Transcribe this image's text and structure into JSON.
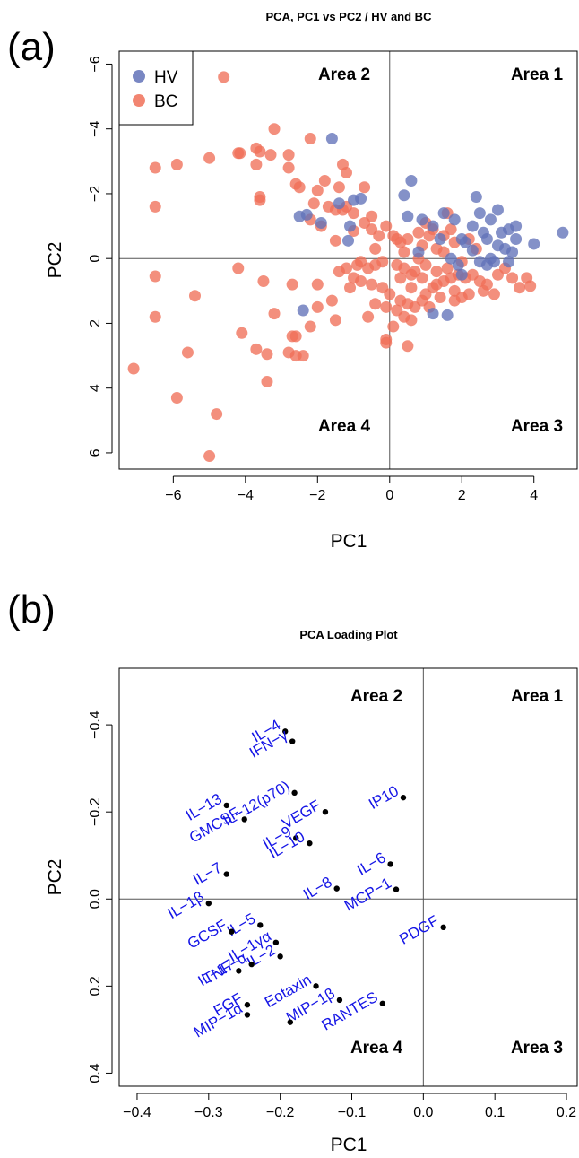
{
  "panel_a": {
    "tag": "(a)"
  },
  "panel_b": {
    "tag": "(b)"
  },
  "chart_data": [
    {
      "type": "scatter",
      "title": "PCA, PC1 vs PC2 / HV and BC",
      "xlabel": "PC1",
      "ylabel": "PC2",
      "xlim": [
        -7.5,
        5.2
      ],
      "ylim": [
        -6.4,
        6.5
      ],
      "y_reversed": true,
      "xticks": [
        -6,
        -4,
        -2,
        0,
        2,
        4
      ],
      "xtick_labels": [
        "−6",
        "−4",
        "−2",
        "0",
        "2",
        "4"
      ],
      "yticks": [
        -6,
        -4,
        -2,
        0,
        2,
        4,
        6
      ],
      "ytick_labels": [
        "−6",
        "−4",
        "−2",
        "0",
        "2",
        "4",
        "6"
      ],
      "reference_lines": {
        "x": 0,
        "y": 0
      },
      "grid": false,
      "legend_position": "top-left",
      "quadrant_labels": [
        "Area 2",
        "Area 1",
        "Area 4",
        "Area 3"
      ],
      "series": [
        {
          "name": "HV",
          "color": "#6272b8",
          "points": [
            [
              -1.6,
              -3.7
            ],
            [
              0.6,
              -2.4
            ],
            [
              0.4,
              -1.95
            ],
            [
              -1.0,
              -1.8
            ],
            [
              -0.8,
              -1.85
            ],
            [
              -1.4,
              -1.7
            ],
            [
              -2.3,
              -1.35
            ],
            [
              -1.9,
              -1.1
            ],
            [
              -2.5,
              -1.3
            ],
            [
              -1.15,
              -0.55
            ],
            [
              -1.1,
              -1.0
            ],
            [
              0.9,
              -1.2
            ],
            [
              -2.4,
              1.6
            ],
            [
              0.5,
              -1.3
            ],
            [
              1.2,
              -1.0
            ],
            [
              1.4,
              -0.6
            ],
            [
              1.5,
              -1.4
            ],
            [
              1.8,
              -1.2
            ],
            [
              2.0,
              -0.6
            ],
            [
              2.3,
              -1.0
            ],
            [
              2.4,
              -1.9
            ],
            [
              2.5,
              -1.4
            ],
            [
              2.6,
              -0.8
            ],
            [
              2.8,
              -1.2
            ],
            [
              3.0,
              -1.5
            ],
            [
              3.3,
              -0.9
            ],
            [
              3.5,
              -1.0
            ],
            [
              3.5,
              -0.6
            ],
            [
              4.8,
              -0.8
            ],
            [
              4.0,
              -0.45
            ],
            [
              2.8,
              0.0
            ],
            [
              3.0,
              -0.4
            ],
            [
              3.2,
              -0.3
            ],
            [
              3.4,
              -0.2
            ],
            [
              2.7,
              -0.6
            ],
            [
              1.2,
              1.7
            ],
            [
              1.6,
              1.75
            ],
            [
              2.0,
              0.5
            ],
            [
              2.5,
              0.1
            ],
            [
              2.7,
              0.2
            ],
            [
              1.7,
              0.0
            ],
            [
              2.1,
              -0.5
            ],
            [
              2.3,
              -0.25
            ],
            [
              2.9,
              0.1
            ],
            [
              3.3,
              0.1
            ],
            [
              1.9,
              0.2
            ],
            [
              0.8,
              -0.2
            ],
            [
              3.1,
              -0.8
            ]
          ]
        },
        {
          "name": "BC",
          "color": "#f07058",
          "points": [
            [
              -4.6,
              -5.6
            ],
            [
              -3.2,
              -4.0
            ],
            [
              -2.2,
              -3.7
            ],
            [
              -3.7,
              -3.4
            ],
            [
              -3.6,
              -3.3
            ],
            [
              -4.2,
              -3.25
            ],
            [
              -4.15,
              -3.25
            ],
            [
              -3.3,
              -3.2
            ],
            [
              -2.8,
              -3.2
            ],
            [
              -5.0,
              -3.1
            ],
            [
              -6.5,
              -2.8
            ],
            [
              -5.9,
              -2.9
            ],
            [
              -3.7,
              -2.9
            ],
            [
              -2.8,
              -2.8
            ],
            [
              -1.3,
              -2.9
            ],
            [
              -1.2,
              -2.65
            ],
            [
              -1.8,
              -2.4
            ],
            [
              -2.6,
              -2.3
            ],
            [
              -2.5,
              -2.2
            ],
            [
              -2.0,
              -2.1
            ],
            [
              -1.4,
              -2.2
            ],
            [
              -0.7,
              -2.2
            ],
            [
              -3.6,
              -1.9
            ],
            [
              -3.6,
              -1.8
            ],
            [
              -1.2,
              -1.6
            ],
            [
              -2.1,
              -1.7
            ],
            [
              -1.7,
              -1.6
            ],
            [
              -1.5,
              -1.5
            ],
            [
              -1.3,
              -1.5
            ],
            [
              -1.0,
              -1.4
            ],
            [
              -0.5,
              -1.3
            ],
            [
              -2.2,
              -1.2
            ],
            [
              -1.9,
              -1.0
            ],
            [
              -6.5,
              -1.6
            ],
            [
              -0.7,
              -1.1
            ],
            [
              -0.1,
              -1.0
            ],
            [
              -0.3,
              -0.7
            ],
            [
              0.5,
              -0.6
            ],
            [
              0.8,
              -0.8
            ],
            [
              1.1,
              -0.7
            ],
            [
              1.2,
              -0.9
            ],
            [
              1.3,
              -0.3
            ],
            [
              1.5,
              -0.7
            ],
            [
              1.6,
              -1.4
            ],
            [
              1.7,
              -0.9
            ],
            [
              0.2,
              -0.6
            ],
            [
              0.3,
              -0.5
            ],
            [
              0.9,
              -0.4
            ],
            [
              1.5,
              -0.2
            ],
            [
              1.8,
              -0.5
            ],
            [
              2.2,
              -0.6
            ],
            [
              2.4,
              -0.3
            ],
            [
              -1.5,
              -0.55
            ],
            [
              -1.0,
              -0.85
            ],
            [
              -0.5,
              -0.9
            ],
            [
              0.1,
              -0.7
            ],
            [
              -0.4,
              -0.3
            ],
            [
              -6.5,
              0.55
            ],
            [
              -4.2,
              0.3
            ],
            [
              -3.5,
              0.7
            ],
            [
              -2.7,
              0.8
            ],
            [
              -2.0,
              0.8
            ],
            [
              -1.4,
              0.4
            ],
            [
              -1.2,
              0.3
            ],
            [
              -0.9,
              0.2
            ],
            [
              -0.6,
              0.3
            ],
            [
              -0.4,
              0.2
            ],
            [
              -0.2,
              0.1
            ],
            [
              0.2,
              0.2
            ],
            [
              0.4,
              0.3
            ],
            [
              0.6,
              0.5
            ],
            [
              0.7,
              0.4
            ],
            [
              0.9,
              0.6
            ],
            [
              1.2,
              0.9
            ],
            [
              1.3,
              0.8
            ],
            [
              1.5,
              0.7
            ],
            [
              1.7,
              0.6
            ],
            [
              1.9,
              0.5
            ],
            [
              2.1,
              0.6
            ],
            [
              2.3,
              0.5
            ],
            [
              2.5,
              0.7
            ],
            [
              2.7,
              0.8
            ],
            [
              3.0,
              0.5
            ],
            [
              3.2,
              0.3
            ],
            [
              3.4,
              0.6
            ],
            [
              3.6,
              0.9
            ],
            [
              3.8,
              0.6
            ],
            [
              3.9,
              0.85
            ],
            [
              -1.0,
              0.6
            ],
            [
              -0.8,
              0.7
            ],
            [
              -0.5,
              0.8
            ],
            [
              -0.2,
              0.9
            ],
            [
              0.0,
              1.1
            ],
            [
              0.3,
              1.3
            ],
            [
              0.5,
              1.4
            ],
            [
              0.7,
              1.5
            ],
            [
              0.9,
              1.3
            ],
            [
              1.1,
              1.5
            ],
            [
              1.4,
              1.2
            ],
            [
              1.8,
              1.0
            ],
            [
              2.0,
              1.2
            ],
            [
              2.2,
              1.1
            ],
            [
              2.6,
              1.0
            ],
            [
              2.9,
              1.1
            ],
            [
              -0.4,
              1.4
            ],
            [
              -0.1,
              1.5
            ],
            [
              0.2,
              1.6
            ],
            [
              0.4,
              1.8
            ],
            [
              0.6,
              1.9
            ],
            [
              0.1,
              2.1
            ],
            [
              -0.6,
              1.8
            ],
            [
              -0.1,
              2.5
            ],
            [
              -0.1,
              2.6
            ],
            [
              0.5,
              2.7
            ],
            [
              -1.5,
              1.9
            ],
            [
              -2.2,
              2.1
            ],
            [
              -2.6,
              2.4
            ],
            [
              -3.2,
              1.7
            ],
            [
              -5.4,
              1.15
            ],
            [
              -6.5,
              1.8
            ],
            [
              -4.1,
              2.3
            ],
            [
              -3.7,
              2.8
            ],
            [
              -2.8,
              2.9
            ],
            [
              -3.4,
              2.95
            ],
            [
              -2.4,
              3.0
            ],
            [
              -2.6,
              3.0
            ],
            [
              -3.4,
              3.8
            ],
            [
              -5.6,
              2.9
            ],
            [
              -7.1,
              3.4
            ],
            [
              -5.9,
              4.3
            ],
            [
              -4.8,
              4.8
            ],
            [
              -5.0,
              6.1
            ],
            [
              -2.7,
              2.4
            ],
            [
              -2.0,
              1.5
            ],
            [
              -1.6,
              1.3
            ],
            [
              -1.1,
              0.9
            ],
            [
              0.8,
              0.0
            ],
            [
              1.0,
              0.2
            ],
            [
              1.3,
              0.4
            ],
            [
              1.6,
              0.3
            ],
            [
              2.0,
              0.1
            ],
            [
              -0.8,
              0.1
            ],
            [
              0.3,
              0.6
            ],
            [
              0.6,
              0.9
            ],
            [
              1.0,
              1.1
            ],
            [
              1.8,
              1.3
            ],
            [
              0.4,
              -0.2
            ],
            [
              1.0,
              -1.1
            ]
          ]
        }
      ]
    },
    {
      "type": "scatter",
      "title": "PCA Loading Plot",
      "xlabel": "PC1",
      "ylabel": "PC2",
      "xlim": [
        -0.425,
        0.215
      ],
      "ylim": [
        -0.53,
        0.43
      ],
      "y_reversed": true,
      "xticks": [
        -0.4,
        -0.3,
        -0.2,
        -0.1,
        0.0,
        0.1,
        0.2
      ],
      "xtick_labels": [
        "−0.4",
        "−0.3",
        "−0.2",
        "−0.1",
        "0.0",
        "0.1",
        "0.2"
      ],
      "yticks": [
        -0.4,
        -0.2,
        0.0,
        0.2,
        0.4
      ],
      "ytick_labels": [
        "−0.4",
        "−0.2",
        "0.0",
        "0.2",
        "0.4"
      ],
      "reference_lines": {
        "x": 0,
        "y": 0
      },
      "grid": false,
      "quadrant_labels": [
        "Area 2",
        "Area 1",
        "Area 4",
        "Area 3"
      ],
      "point_color": "#000000",
      "label_color": "#1515e6",
      "points": [
        {
          "label": "IL−4",
          "x": -0.193,
          "y": -0.385
        },
        {
          "label": "IFN−γ",
          "x": -0.183,
          "y": -0.362
        },
        {
          "label": "IL−12(p70)",
          "x": -0.18,
          "y": -0.244
        },
        {
          "label": "IP10",
          "x": -0.028,
          "y": -0.233
        },
        {
          "label": "IL−13",
          "x": -0.275,
          "y": -0.215
        },
        {
          "label": "VEGF",
          "x": -0.137,
          "y": -0.2
        },
        {
          "label": "GMCSF",
          "x": -0.25,
          "y": -0.183
        },
        {
          "label": "IL−9",
          "x": -0.178,
          "y": -0.14
        },
        {
          "label": "IL−10",
          "x": -0.159,
          "y": -0.128
        },
        {
          "label": "IL−6",
          "x": -0.046,
          "y": -0.08
        },
        {
          "label": "IL−7",
          "x": -0.275,
          "y": -0.057
        },
        {
          "label": "IL−8",
          "x": -0.121,
          "y": -0.024
        },
        {
          "label": "MCP−1",
          "x": -0.038,
          "y": -0.022
        },
        {
          "label": "IL−1β",
          "x": -0.3,
          "y": 0.01
        },
        {
          "label": "IL−5",
          "x": -0.228,
          "y": 0.06
        },
        {
          "label": "GCSF",
          "x": -0.268,
          "y": 0.075
        },
        {
          "label": "PDGF",
          "x": 0.028,
          "y": 0.065
        },
        {
          "label": "IL−1γα",
          "x": -0.206,
          "y": 0.1
        },
        {
          "label": "IL−2",
          "x": -0.2,
          "y": 0.132
        },
        {
          "label": "TNF−α",
          "x": -0.24,
          "y": 0.15
        },
        {
          "label": "IL−17",
          "x": -0.258,
          "y": 0.165
        },
        {
          "label": "Eotaxin",
          "x": -0.15,
          "y": 0.2
        },
        {
          "label": "MIP−1β",
          "x": -0.117,
          "y": 0.232
        },
        {
          "label": "RANTES",
          "x": -0.057,
          "y": 0.24
        },
        {
          "label": "FGF",
          "x": -0.246,
          "y": 0.243
        },
        {
          "label": "MIP−1α",
          "x": -0.246,
          "y": 0.266
        },
        {
          "label": "",
          "x": -0.186,
          "y": 0.283
        }
      ]
    }
  ]
}
